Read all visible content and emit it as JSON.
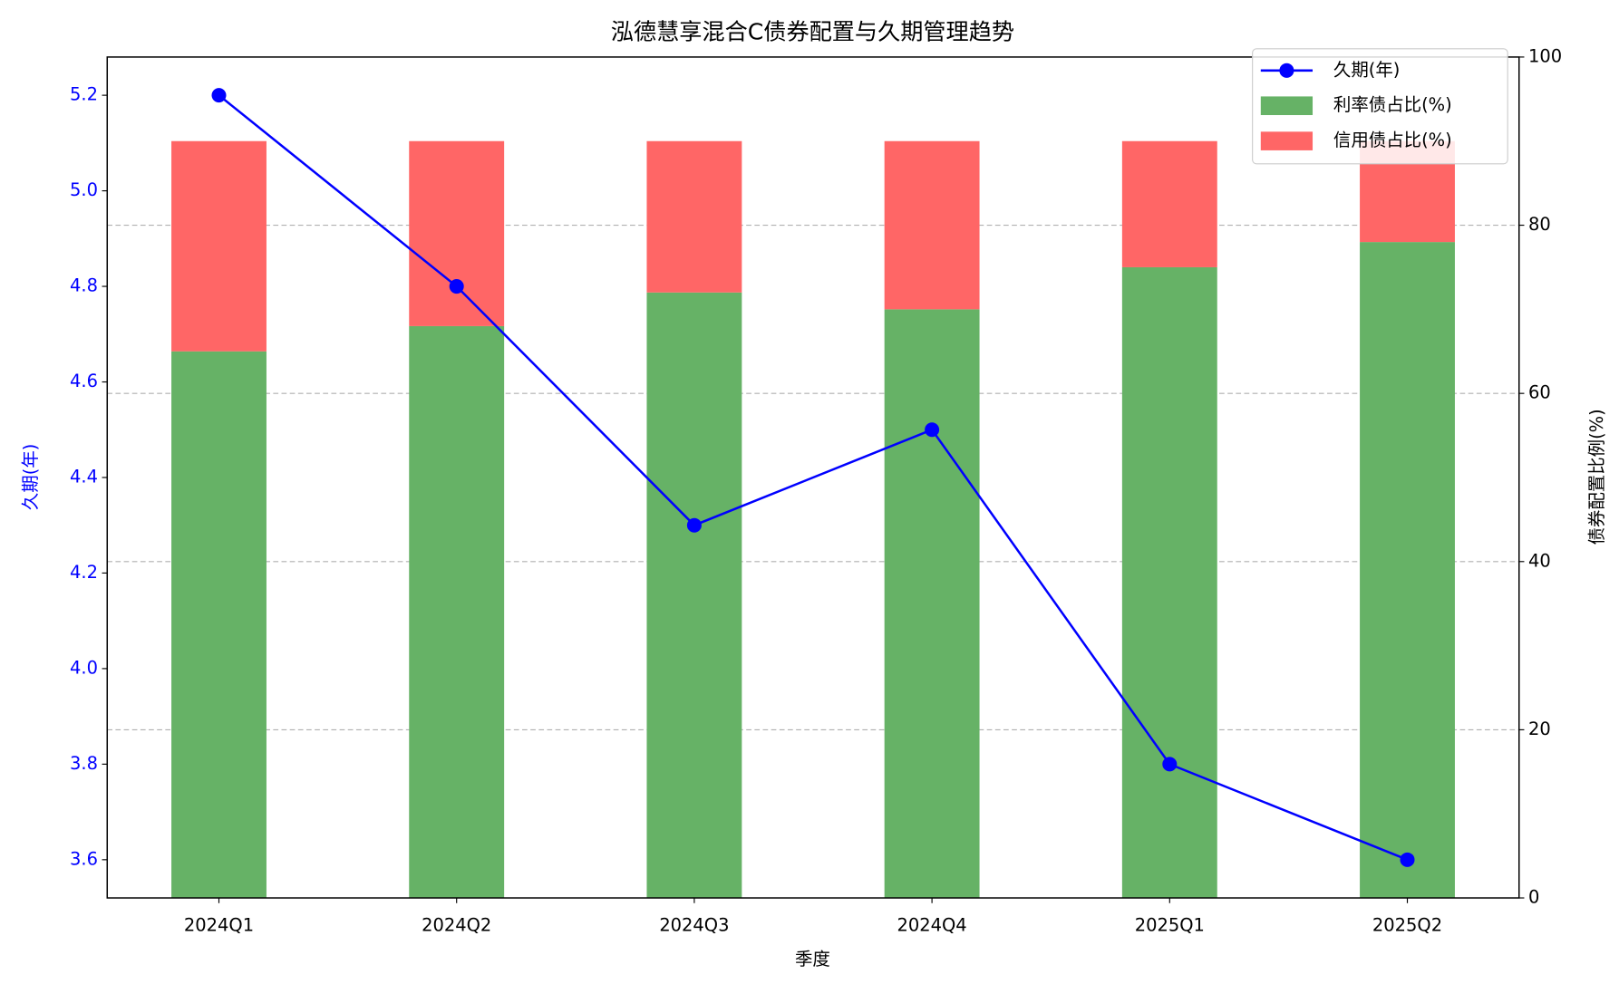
{
  "chart_data": {
    "type": "bar_line",
    "title": "泓德慧享混合C债券配置与久期管理趋势",
    "x_label": "季度",
    "y_label": "久期(年)",
    "y2_label": "债券配置比例(%)",
    "categories": [
      "2024Q1",
      "2024Q2",
      "2024Q3",
      "2024Q4",
      "2025Q1",
      "2025Q2"
    ],
    "series": [
      {
        "name": "久期(年)",
        "type": "line",
        "color": "#0000ff",
        "axis": "y",
        "values": [
          5.2,
          4.8,
          4.3,
          4.5,
          3.8,
          3.6
        ]
      },
      {
        "name": "利率债占比(%)",
        "type": "bar",
        "color": "#66b266",
        "axis": "y2",
        "values": [
          65,
          68,
          72,
          70,
          75,
          78
        ]
      },
      {
        "name": "信用债占比(%)",
        "type": "bar",
        "color": "#ff6666",
        "axis": "y2",
        "values": [
          25,
          22,
          18,
          20,
          15,
          12
        ]
      }
    ],
    "ylim": [
      3.52,
      5.28
    ],
    "yticks": [
      3.6,
      3.8,
      {
        "value": 4.0,
        "label": "4.0"
      },
      4.2,
      4.4,
      4.6,
      4.8,
      {
        "value": 5.0,
        "label": "5.0"
      },
      5.2
    ],
    "y2lim": [
      0,
      100
    ],
    "y2ticks": [
      0,
      20,
      40,
      60,
      80,
      100
    ],
    "grid": true,
    "legend": "upper-right"
  }
}
